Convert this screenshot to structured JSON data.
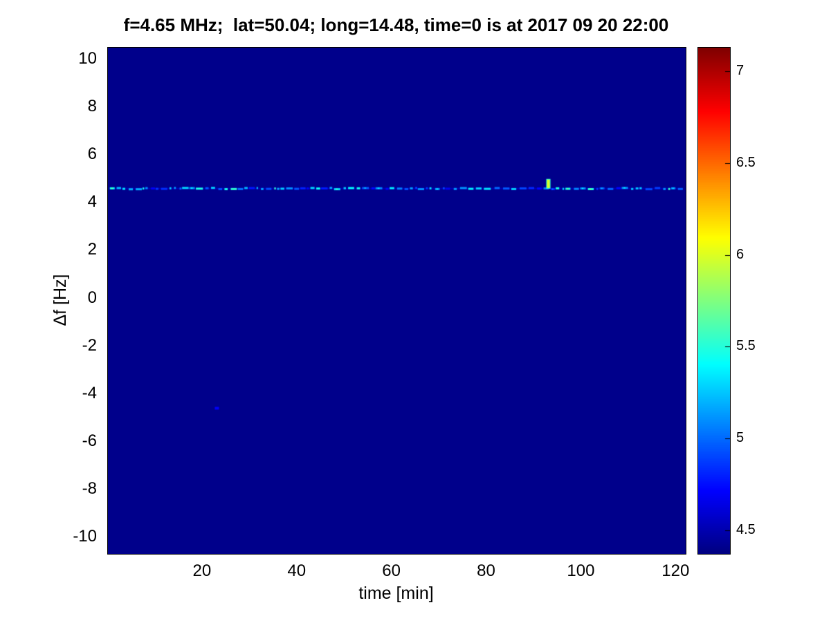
{
  "figure": {
    "background": "#ffffff",
    "frame_color": "#000000"
  },
  "chart_data": {
    "type": "heatmap",
    "title": "f=4.65 MHz;  lat=50.04; long=14.48, time=0 is at 2017 09 20 22:00",
    "xlabel": "time [min]",
    "ylabel": "Δf [Hz]",
    "xlim": [
      0,
      122
    ],
    "ylim": [
      -10.7,
      10.5
    ],
    "x_ticks": [
      20,
      40,
      60,
      80,
      100,
      120
    ],
    "y_ticks": [
      -10,
      -8,
      -6,
      -4,
      -2,
      0,
      2,
      4,
      6,
      8,
      10
    ],
    "grid": false,
    "legend": "none",
    "colormap": "jet",
    "colorbar": {
      "position": "right",
      "ticks": [
        4.5,
        5,
        5.5,
        6,
        6.5,
        7
      ],
      "range": [
        4.37,
        7.13
      ]
    },
    "background_value": 4.4,
    "signals": [
      {
        "name": "carrier-line",
        "kind": "dashed-line",
        "y": 4.6,
        "x_start": 0.4,
        "x_end": 121.4,
        "base_value": 4.52,
        "value_range": [
          4.65,
          5.55
        ],
        "seed": 42
      },
      {
        "name": "bright-spot",
        "kind": "spot",
        "x": 93,
        "y": 4.8,
        "w": 0.6,
        "h": 0.35,
        "value": 6.0
      },
      {
        "name": "faint-dot",
        "kind": "spot",
        "x": 23,
        "y": -4.6,
        "w": 0.9,
        "h": 0.12,
        "value": 4.7
      }
    ]
  }
}
